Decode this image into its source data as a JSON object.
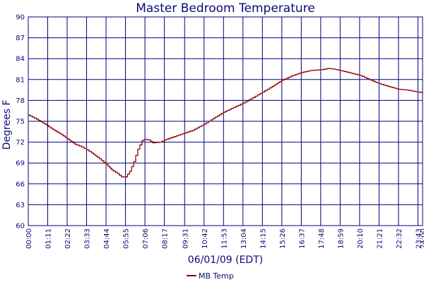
{
  "chart_data": {
    "type": "line",
    "title": "Master Bedroom Temperature",
    "xlabel": "06/01/09 (EDT)",
    "ylabel": "Degrees F",
    "ylim": [
      60,
      90
    ],
    "yticks": [
      60,
      63,
      66,
      69,
      72,
      75,
      78,
      81,
      84,
      87,
      90
    ],
    "xlim_minutes": [
      0,
      1440
    ],
    "xticks": [
      "00:00",
      "01:11",
      "02:22",
      "03:33",
      "04:44",
      "05:55",
      "07:06",
      "08:17",
      "09:31",
      "10:42",
      "11:53",
      "13:04",
      "14:15",
      "15:26",
      "16:37",
      "17:48",
      "18:59",
      "20:10",
      "21:21",
      "22:32",
      "23:43",
      "24:00"
    ],
    "grid": true,
    "legend_position": "bottom",
    "colors": {
      "series": "#8b0000",
      "grid": "#000080",
      "text": "#0a0a78"
    },
    "series": [
      {
        "name": "MB Temp",
        "points": [
          [
            "00:00",
            75.9
          ],
          [
            "00:30",
            75.3
          ],
          [
            "01:00",
            74.6
          ],
          [
            "01:30",
            73.8
          ],
          [
            "02:00",
            73.1
          ],
          [
            "02:22",
            72.5
          ],
          [
            "02:50",
            71.7
          ],
          [
            "03:15",
            71.3
          ],
          [
            "03:33",
            70.9
          ],
          [
            "04:00",
            70.2
          ],
          [
            "04:20",
            69.6
          ],
          [
            "04:44",
            68.8
          ],
          [
            "05:05",
            68.0
          ],
          [
            "05:25",
            67.5
          ],
          [
            "05:40",
            67.0
          ],
          [
            "05:55",
            67.0
          ],
          [
            "06:10",
            67.8
          ],
          [
            "06:25",
            69.2
          ],
          [
            "06:40",
            71.0
          ],
          [
            "06:55",
            72.2
          ],
          [
            "07:06",
            72.4
          ],
          [
            "07:20",
            72.3
          ],
          [
            "07:35",
            71.9
          ],
          [
            "08:00",
            72.0
          ],
          [
            "08:17",
            72.3
          ],
          [
            "08:45",
            72.7
          ],
          [
            "09:31",
            73.3
          ],
          [
            "10:00",
            73.7
          ],
          [
            "10:42",
            74.6
          ],
          [
            "11:15",
            75.4
          ],
          [
            "11:53",
            76.3
          ],
          [
            "12:30",
            77.0
          ],
          [
            "13:04",
            77.6
          ],
          [
            "13:40",
            78.4
          ],
          [
            "14:15",
            79.2
          ],
          [
            "14:50",
            80.0
          ],
          [
            "15:26",
            80.9
          ],
          [
            "16:00",
            81.5
          ],
          [
            "16:37",
            82.0
          ],
          [
            "17:10",
            82.3
          ],
          [
            "17:48",
            82.4
          ],
          [
            "18:15",
            82.6
          ],
          [
            "18:35",
            82.5
          ],
          [
            "18:59",
            82.3
          ],
          [
            "19:30",
            82.0
          ],
          [
            "20:10",
            81.6
          ],
          [
            "20:45",
            81.0
          ],
          [
            "21:21",
            80.4
          ],
          [
            "21:55",
            80.0
          ],
          [
            "22:32",
            79.6
          ],
          [
            "23:00",
            79.5
          ],
          [
            "23:43",
            79.2
          ],
          [
            "24:00",
            79.1
          ]
        ]
      }
    ]
  }
}
